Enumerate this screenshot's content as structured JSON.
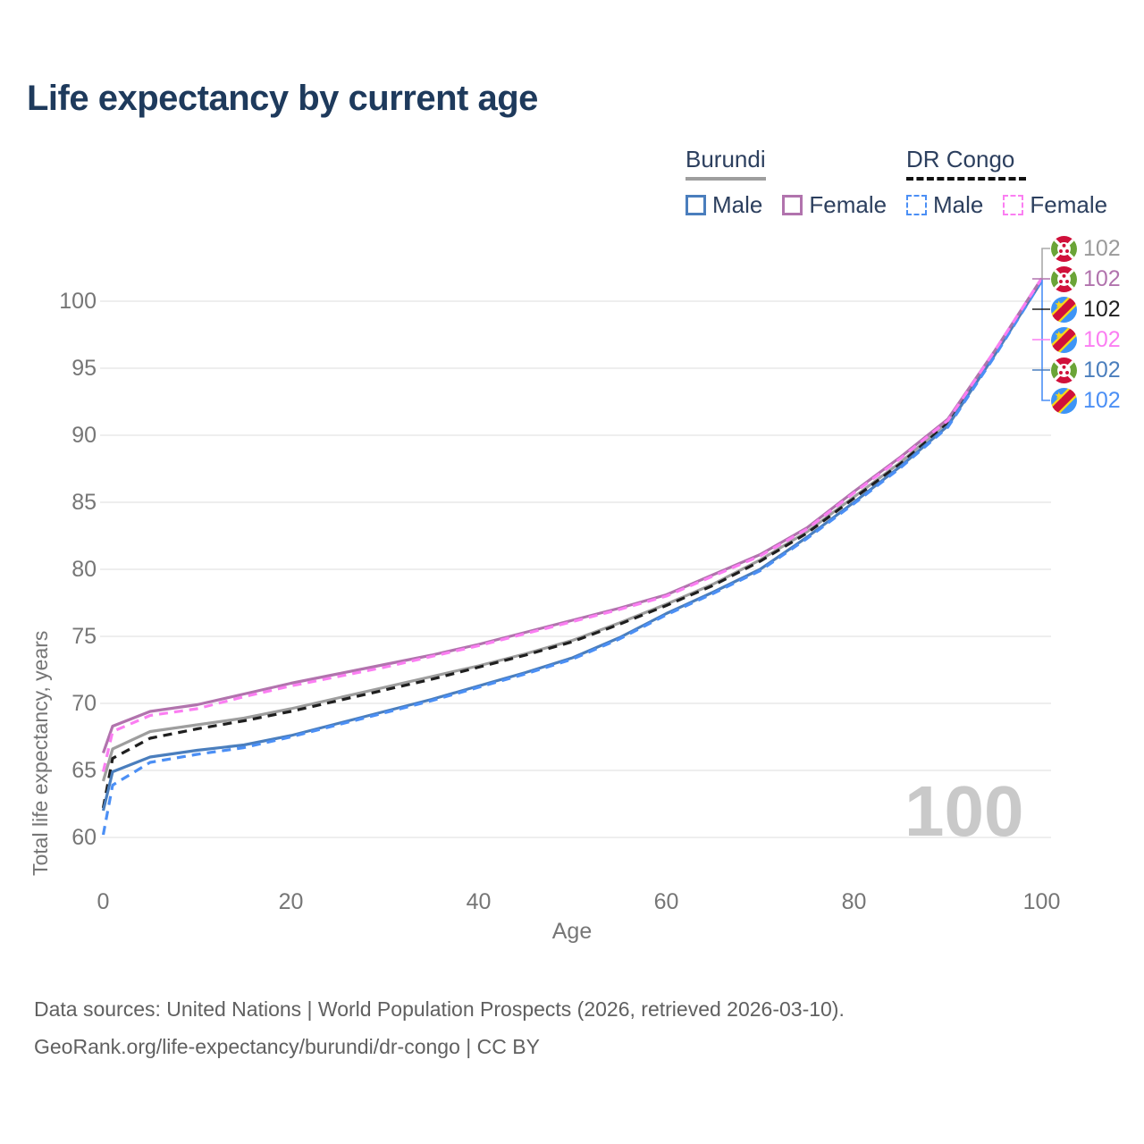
{
  "page": {
    "title": "Life expectancy by current age",
    "watermark_age": "100"
  },
  "legend": {
    "groups": [
      {
        "country": "Burundi",
        "line_style": "solid",
        "underline_color": "#9e9e9e",
        "items": [
          {
            "label": "Male",
            "color": "#4a7ebd",
            "dash": false
          },
          {
            "label": "Female",
            "color": "#b173ad",
            "dash": false
          }
        ]
      },
      {
        "country": "DR Congo",
        "line_style": "dashed",
        "underline_color": "#111111",
        "items": [
          {
            "label": "Male",
            "color": "#4b8ff5",
            "dash": true
          },
          {
            "label": "Female",
            "color": "#fb7ef2",
            "dash": true
          }
        ]
      }
    ]
  },
  "chart_data": {
    "type": "line",
    "title": "Life expectancy by current age",
    "xlabel": "Age",
    "ylabel": "Total life expectancy, years",
    "xlim": [
      0,
      100
    ],
    "ylim": [
      60,
      102
    ],
    "x_ticks": [
      0,
      20,
      40,
      60,
      80,
      100
    ],
    "y_ticks": [
      60,
      65,
      70,
      75,
      80,
      85,
      90,
      95,
      100
    ],
    "grid": "horizontal",
    "legend_position": "top-right",
    "ages": [
      0,
      1,
      5,
      10,
      15,
      20,
      25,
      30,
      35,
      40,
      45,
      50,
      55,
      60,
      65,
      70,
      75,
      80,
      85,
      90,
      95,
      100
    ],
    "series": [
      {
        "name": "Burundi both sexes",
        "country": "Burundi",
        "sex": "both",
        "color": "#9e9e9e",
        "dash": false,
        "values": [
          64.2,
          66.6,
          67.9,
          68.4,
          68.9,
          69.6,
          70.4,
          71.2,
          72.0,
          72.8,
          73.7,
          74.7,
          76.0,
          77.4,
          78.9,
          80.7,
          82.8,
          85.4,
          88.0,
          91.0,
          96.2,
          101.6
        ]
      },
      {
        "name": "DR Congo both sexes",
        "country": "DR Congo",
        "sex": "both",
        "color": "#1f1f1f",
        "dash": true,
        "values": [
          62.2,
          65.9,
          67.4,
          68.1,
          68.7,
          69.4,
          70.2,
          71.0,
          71.8,
          72.7,
          73.6,
          74.6,
          75.9,
          77.3,
          78.8,
          80.6,
          82.7,
          85.3,
          87.9,
          90.9,
          96.1,
          101.6
        ]
      },
      {
        "name": "Burundi male",
        "country": "Burundi",
        "sex": "male",
        "color": "#4a7ebd",
        "dash": false,
        "values": [
          62.0,
          64.9,
          66.0,
          66.5,
          66.9,
          67.6,
          68.5,
          69.4,
          70.3,
          71.3,
          72.3,
          73.4,
          74.9,
          76.7,
          78.3,
          80.0,
          82.4,
          85.0,
          87.7,
          90.7,
          96.0,
          101.5
        ]
      },
      {
        "name": "DR Congo male",
        "country": "DR Congo",
        "sex": "male",
        "color": "#4b8ff5",
        "dash": true,
        "values": [
          60.2,
          63.9,
          65.6,
          66.2,
          66.7,
          67.5,
          68.4,
          69.3,
          70.2,
          71.2,
          72.2,
          73.3,
          74.8,
          76.6,
          78.2,
          79.9,
          82.3,
          84.9,
          87.6,
          90.6,
          95.9,
          101.5
        ]
      },
      {
        "name": "Burundi female",
        "country": "Burundi",
        "sex": "female",
        "color": "#b173ad",
        "dash": false,
        "values": [
          66.3,
          68.3,
          69.4,
          69.9,
          70.7,
          71.5,
          72.2,
          72.9,
          73.6,
          74.4,
          75.3,
          76.2,
          77.1,
          78.1,
          79.6,
          81.1,
          83.1,
          85.8,
          88.4,
          91.2,
          96.3,
          101.7
        ]
      },
      {
        "name": "DR Congo female",
        "country": "DR Congo",
        "sex": "female",
        "color": "#fb7ef2",
        "dash": true,
        "values": [
          64.9,
          67.9,
          69.1,
          69.6,
          70.5,
          71.3,
          72.0,
          72.7,
          73.5,
          74.3,
          75.2,
          76.1,
          77.0,
          78.0,
          79.5,
          81.0,
          83.0,
          85.7,
          88.3,
          91.1,
          96.3,
          101.7
        ]
      }
    ]
  },
  "end_labels": [
    {
      "flag": "burundi",
      "series": "Burundi both sexes",
      "color": "#9a9a9a",
      "value": "102"
    },
    {
      "flag": "burundi",
      "series": "Burundi female",
      "color": "#b173ad",
      "value": "102"
    },
    {
      "flag": "drc",
      "series": "DR Congo both sexes",
      "color": "#1f1f1f",
      "value": "102"
    },
    {
      "flag": "drc",
      "series": "DR Congo female",
      "color": "#fb7ef2",
      "value": "102"
    },
    {
      "flag": "burundi",
      "series": "Burundi male",
      "color": "#4a7ebd",
      "value": "102"
    },
    {
      "flag": "drc",
      "series": "DR Congo male",
      "color": "#4b8ff5",
      "value": "102"
    }
  ],
  "footer": {
    "line1": "Data sources: United Nations | World Population Prospects (2026, retrieved 2026-03-10).",
    "line2": "GeoRank.org/life-expectancy/burundi/dr-congo | CC BY"
  }
}
